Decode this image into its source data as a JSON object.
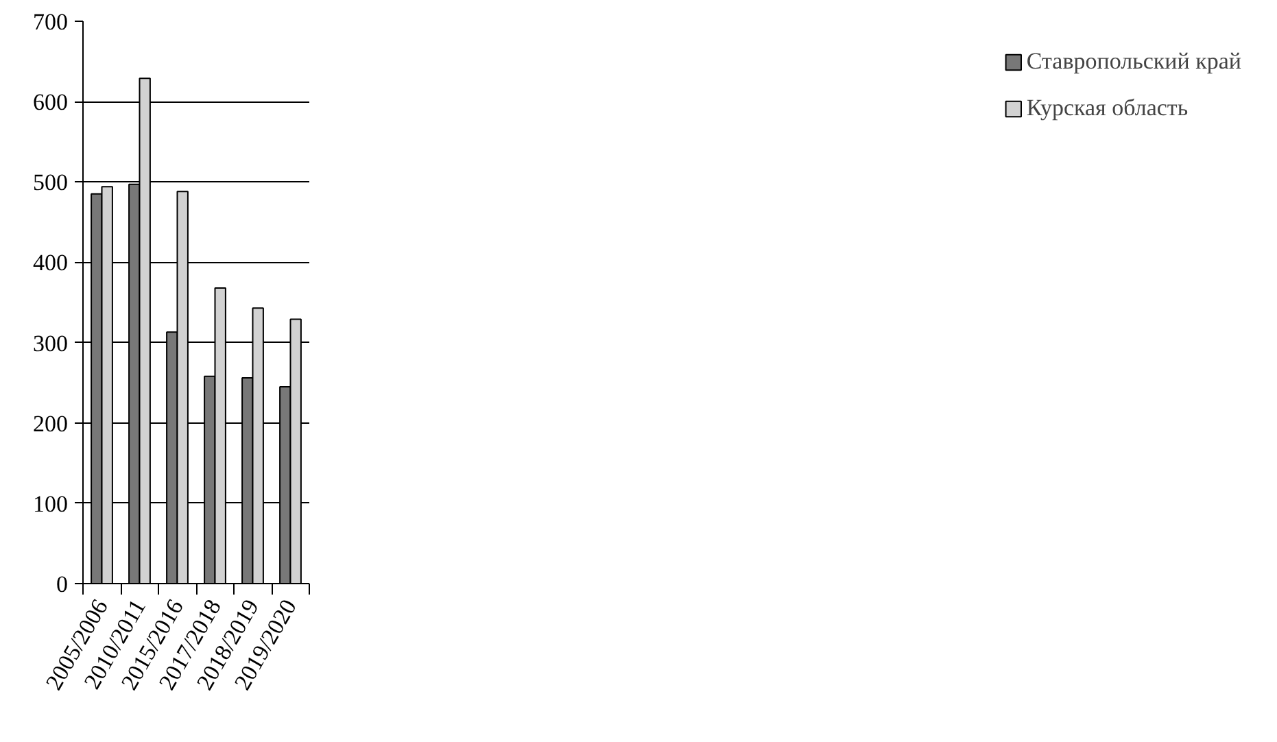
{
  "chart_data": {
    "type": "bar",
    "categories": [
      "2005/2006",
      "2010/2011",
      "2015/2016",
      "2017/2018",
      "2018/2019",
      "2019/2020"
    ],
    "series": [
      {
        "name": "Ставропольский край",
        "color": "#787878",
        "values": [
          485,
          497,
          313,
          258,
          256,
          245
        ]
      },
      {
        "name": "Курская область",
        "color": "#d2d2d2",
        "values": [
          494,
          629,
          488,
          368,
          343,
          329
        ]
      }
    ],
    "ylim": [
      0,
      700
    ],
    "yticks": [
      0,
      100,
      200,
      300,
      400,
      500,
      600,
      700
    ],
    "grid": "y",
    "legend": "right"
  }
}
